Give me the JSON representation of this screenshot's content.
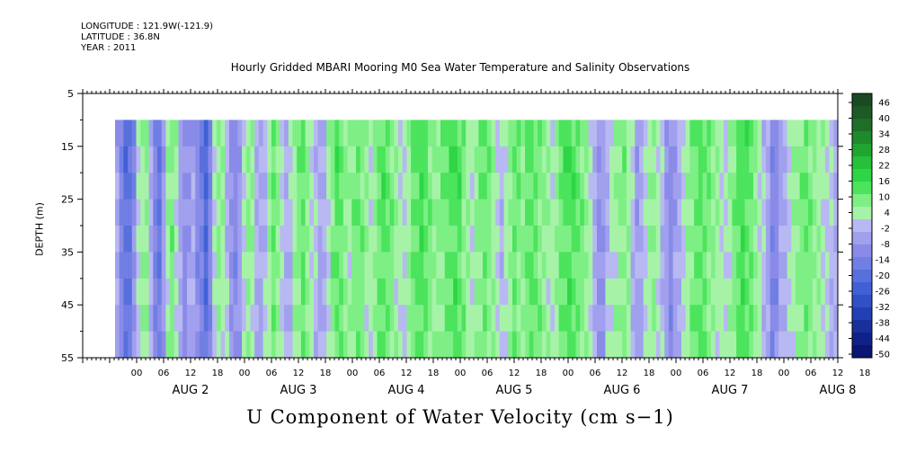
{
  "header": {
    "longitude": "LONGITUDE : 121.9W(-121.9)",
    "latitude": "LATITUDE : 36.8N",
    "year": "YEAR : 2011"
  },
  "chart_data": {
    "type": "heatmap",
    "title": "Hourly Gridded MBARI Mooring M0 Sea Water Temperature and Salinity Observations",
    "xlabel": "U Component of Water Velocity (cm s−1)",
    "ylabel": "DEPTH (m)",
    "ylim": [
      55,
      5
    ],
    "data_depth_range": [
      10,
      55
    ],
    "y_ticks": [
      5,
      15,
      25,
      35,
      45,
      55
    ],
    "x_range_hours": [
      -12,
      156
    ],
    "hour_tick_labels": [
      "00",
      "06",
      "12",
      "18",
      "00",
      "06",
      "12",
      "18",
      "00",
      "06",
      "12",
      "18",
      "00",
      "06",
      "12",
      "18",
      "00",
      "06",
      "12",
      "18",
      "00",
      "06",
      "12",
      "18",
      "00",
      "06",
      "12",
      "18"
    ],
    "day_labels": [
      "AUG  2",
      "AUG  3",
      "AUG  4",
      "AUG  5",
      "AUG  6",
      "AUG  7",
      "AUG  8"
    ],
    "colorbar": {
      "labels": [
        "46",
        "40",
        "34",
        "28",
        "22",
        "16",
        "10",
        "4",
        "-2",
        "-8",
        "-14",
        "-20",
        "-26",
        "-32",
        "-38",
        "-44",
        "-50"
      ],
      "range": [
        -50,
        50
      ],
      "colors": [
        "#1a4a22",
        "#1d5a25",
        "#1f6e28",
        "#1f8a2c",
        "#21a531",
        "#26c03a",
        "#2ed646",
        "#4ce35d",
        "#7eef85",
        "#a6f3a8",
        "#b8b8f2",
        "#a0a0ee",
        "#8a8ae8",
        "#6f7fe4",
        "#5870dc",
        "#4060d4",
        "#3050c8",
        "#2240b4",
        "#18309c",
        "#102288",
        "#0a1672"
      ]
    },
    "field_columns_cm_s": [
      -4,
      -12,
      -20,
      -18,
      -10,
      2,
      6,
      8,
      -2,
      -12,
      -16,
      -6,
      6,
      10,
      4,
      -4,
      -10,
      -6,
      -4,
      -10,
      -14,
      -22,
      -12,
      2,
      8,
      6,
      0,
      -8,
      -10,
      -6,
      2,
      8,
      6,
      -2,
      -4,
      0,
      6,
      12,
      8,
      2,
      -2,
      0,
      6,
      10,
      14,
      8,
      4,
      0,
      -4,
      -2,
      4,
      10,
      14,
      12,
      8,
      6,
      10,
      12,
      10,
      6,
      4,
      8,
      12,
      14,
      12,
      10,
      6,
      4,
      2,
      6,
      12,
      14,
      16,
      14,
      10,
      8,
      8,
      10,
      12,
      14,
      16,
      14,
      10,
      6,
      4,
      8,
      10,
      12,
      10,
      6,
      2,
      0,
      4,
      8,
      12,
      10,
      8,
      12,
      14,
      12,
      10,
      8,
      6,
      4,
      8,
      12,
      14,
      16,
      14,
      12,
      10,
      8,
      4,
      -2,
      -8,
      -6,
      0,
      4,
      6,
      8,
      10,
      6,
      0,
      -6,
      -4,
      2,
      6,
      8,
      4,
      0,
      -6,
      -10,
      -6,
      -2,
      2,
      6,
      10,
      12,
      14,
      12,
      10,
      8,
      6,
      4,
      2,
      6,
      10,
      14,
      16,
      14,
      12,
      8,
      4,
      0,
      -4,
      -12,
      -10,
      -4,
      -2,
      2,
      6,
      8,
      10,
      12,
      10,
      8,
      6,
      4,
      2,
      0,
      -2
    ]
  }
}
